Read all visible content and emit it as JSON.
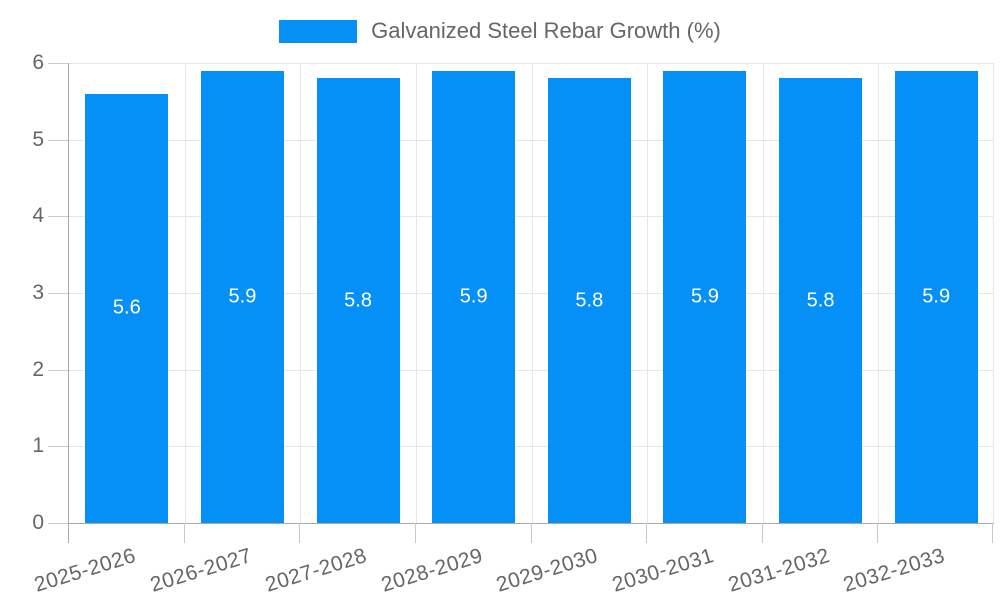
{
  "legend": {
    "label": "Galvanized Steel Rebar Growth (%)"
  },
  "chart_data": {
    "type": "bar",
    "title": "Galvanized Steel Rebar Growth (%)",
    "categories": [
      "2025-2026",
      "2026-2027",
      "2027-2028",
      "2028-2029",
      "2029-2030",
      "2030-2031",
      "2031-2032",
      "2032-2033"
    ],
    "series": [
      {
        "name": "Galvanized Steel Rebar Growth (%)",
        "values": [
          5.6,
          5.9,
          5.8,
          5.9,
          5.8,
          5.9,
          5.8,
          5.9
        ]
      }
    ],
    "xlabel": "",
    "ylabel": "",
    "ylim": [
      0,
      6
    ],
    "yticks": [
      0,
      1,
      2,
      3,
      4,
      5,
      6
    ],
    "grid": true,
    "legend_position": "top-center",
    "value_labels": "inside-center"
  },
  "colors": {
    "bar": "#0590f8",
    "axis_text": "#666666",
    "legend_text": "#666666",
    "gridline": "#e6e6e6",
    "axis_line": "#a8a8a8",
    "tick_mark": "#c8c8c8",
    "value_label": "#ffffff",
    "background": "#ffffff"
  }
}
